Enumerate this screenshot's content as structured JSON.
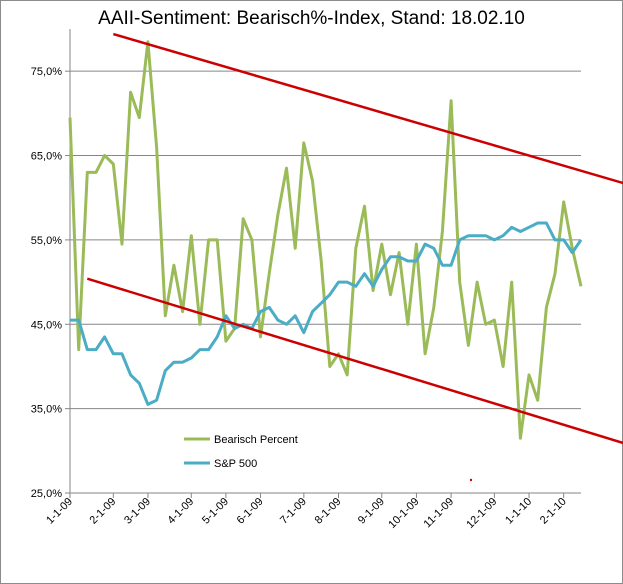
{
  "chart_data": {
    "type": "line",
    "title": "AAII-Sentiment:  Bearisch%-Index,  Stand: 18.02.10",
    "xlabel": "",
    "ylabel": "",
    "ylim": [
      25,
      80
    ],
    "yticks": [
      25,
      35,
      45,
      55,
      65,
      75
    ],
    "ytick_labels": [
      "25,0%",
      "35,0%",
      "45,0%",
      "55,0%",
      "65,0%",
      "75,0%"
    ],
    "grid": true,
    "legend_position": "lower-left",
    "x_index_range": [
      0,
      59
    ],
    "xticks": [
      {
        "label": "1-1-09",
        "index": 0
      },
      {
        "label": "2-1-09",
        "index": 5
      },
      {
        "label": "3-1-09",
        "index": 9
      },
      {
        "label": "4-1-09",
        "index": 14
      },
      {
        "label": "5-1-09",
        "index": 18
      },
      {
        "label": "6-1-09",
        "index": 22
      },
      {
        "label": "7-1-09",
        "index": 27
      },
      {
        "label": "8-1-09",
        "index": 31
      },
      {
        "label": "9-1-09",
        "index": 36
      },
      {
        "label": "10-1-09",
        "index": 40
      },
      {
        "label": "11-1-09",
        "index": 44
      },
      {
        "label": "12-1-09",
        "index": 49
      },
      {
        "label": "1-1-10",
        "index": 53
      },
      {
        "label": "2-1-10",
        "index": 57
      }
    ],
    "series": [
      {
        "name": "Bearisch Percent",
        "color": "#9bbb59",
        "values": [
          69.5,
          42,
          63,
          63,
          65,
          64,
          54.5,
          72.5,
          69.5,
          78.5,
          66,
          46,
          52,
          46.5,
          55.5,
          45,
          55,
          55,
          43,
          44.5,
          57.5,
          55,
          43.5,
          51,
          58,
          63.5,
          54,
          66.5,
          62,
          52.5,
          40,
          41.5,
          39,
          54,
          59,
          49,
          54.5,
          48.5,
          53.5,
          45,
          54.5,
          41.5,
          47,
          56,
          71.5,
          50,
          42.5,
          50,
          45,
          45.5,
          40,
          50,
          31.5,
          39,
          36,
          47,
          51,
          59.5,
          54,
          49.5
        ]
      },
      {
        "name": "S&P 500",
        "color": "#4bacc6",
        "values": [
          45.5,
          45.5,
          42,
          42,
          43.5,
          41.5,
          41.5,
          39,
          38,
          35.5,
          36,
          39.5,
          40.5,
          40.5,
          41,
          42,
          42,
          43.5,
          46,
          44.5,
          45,
          44.5,
          46.5,
          47,
          45.5,
          45,
          46,
          44,
          46.5,
          47.5,
          48.5,
          50,
          50,
          49.5,
          51,
          49.5,
          51.5,
          53,
          53,
          52.5,
          52.5,
          54.5,
          54,
          52,
          52,
          55,
          55.5,
          55.5,
          55.5,
          55,
          55.5,
          56.5,
          56,
          56.5,
          57,
          57,
          55,
          55,
          53.5,
          55
        ]
      }
    ],
    "trend_lines": [
      {
        "name": "upper-trend",
        "color": "#cc0000",
        "from": {
          "x": 5.0,
          "y": 79.4
        },
        "to": {
          "x": 70,
          "y": 59.9
        }
      },
      {
        "name": "lower-trend",
        "color": "#cc0000",
        "from": {
          "x": 2.0,
          "y": 50.4
        },
        "to": {
          "x": 70,
          "y": 29.0
        }
      }
    ]
  }
}
